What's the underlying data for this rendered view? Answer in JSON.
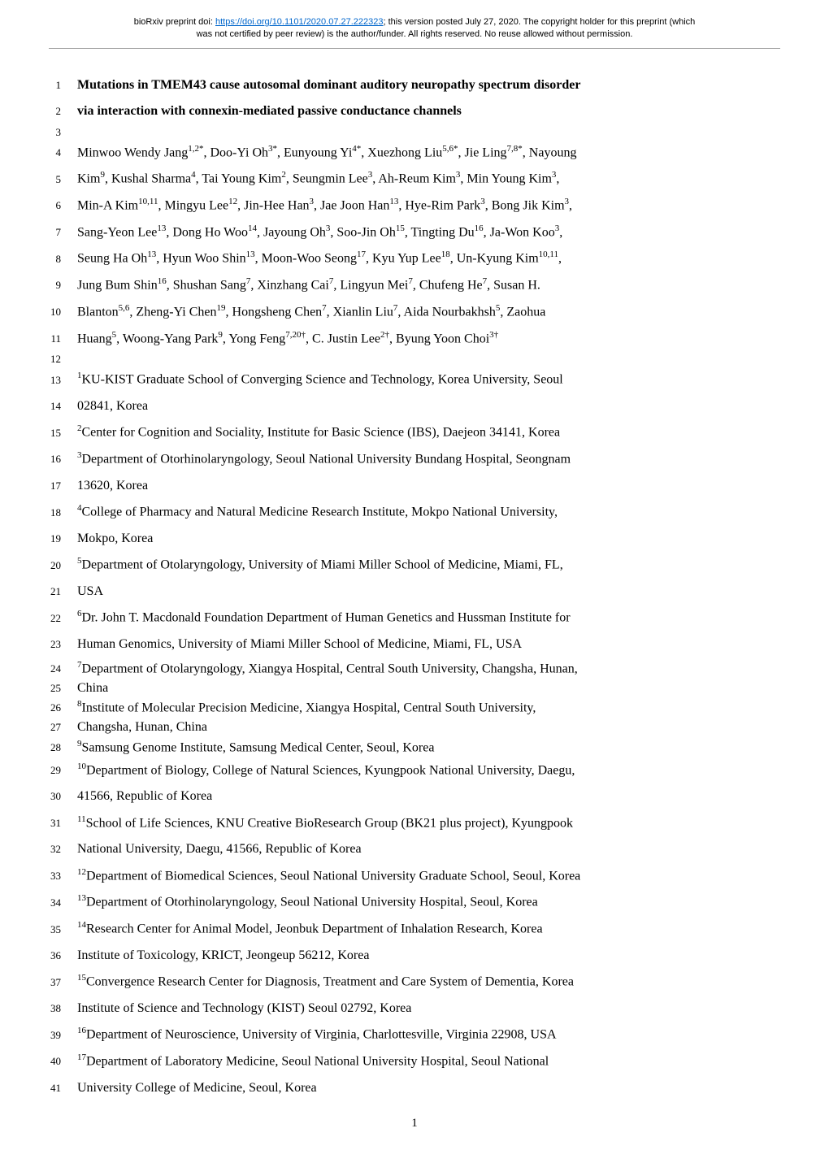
{
  "preprint": {
    "prefix": "bioRxiv preprint doi: ",
    "doi_url": "https://doi.org/10.1101/2020.07.27.222323",
    "suffix1": "; this version posted July 27, 2020. The copyright holder for this preprint (which",
    "suffix2": "was not certified by peer review) is the author/funder. All rights reserved. No reuse allowed without permission."
  },
  "lines": [
    {
      "num": "1",
      "type": "title",
      "html": "Mutations in TMEM43 cause autosomal dominant auditory neuropathy spectrum disorder"
    },
    {
      "num": "2",
      "type": "title",
      "html": "via interaction with connexin-mediated passive conductance channels"
    },
    {
      "num": "3",
      "type": "blank",
      "html": ""
    },
    {
      "num": "4",
      "type": "author",
      "html": "Minwoo Wendy Jang<sup>1,2*</sup>, Doo-Yi Oh<sup>3*</sup>, Eunyoung Yi<sup>4*</sup>, Xuezhong Liu<sup>5,6*</sup>, Jie Ling<sup>7,8*</sup>, Nayoung"
    },
    {
      "num": "5",
      "type": "author",
      "html": "Kim<sup>9</sup>, Kushal Sharma<sup>4</sup>, Tai Young Kim<sup>2</sup>, Seungmin Lee<sup>3</sup>, Ah-Reum Kim<sup>3</sup>, Min Young Kim<sup>3</sup>,"
    },
    {
      "num": "6",
      "type": "author",
      "html": "Min-A Kim<sup>10,11</sup>, Mingyu Lee<sup>12</sup>, Jin-Hee Han<sup>3</sup>, Jae Joon Han<sup>13</sup>, Hye-Rim Park<sup>3</sup>, Bong Jik Kim<sup>3</sup>,"
    },
    {
      "num": "7",
      "type": "author",
      "html": "Sang-Yeon Lee<sup>13</sup>, Dong Ho Woo<sup>14</sup>, Jayoung Oh<sup>3</sup>, Soo-Jin Oh<sup>15</sup>, Tingting Du<sup>16</sup>, Ja-Won Koo<sup>3</sup>,"
    },
    {
      "num": "8",
      "type": "author",
      "html": "Seung Ha Oh<sup>13</sup>, Hyun Woo Shin<sup>13</sup>, Moon-Woo Seong<sup>17</sup>, Kyu Yup Lee<sup>18</sup>, Un-Kyung Kim<sup>10,11</sup>,"
    },
    {
      "num": "9",
      "type": "author",
      "html": "Jung Bum Shin<sup>16</sup>, Shushan Sang<sup>7</sup>, Xinzhang Cai<sup>7</sup>, Lingyun Mei<sup>7</sup>, Chufeng He<sup>7</sup>, Susan H."
    },
    {
      "num": "10",
      "type": "author",
      "html": "Blanton<sup>5,6</sup>, Zheng-Yi Chen<sup>19</sup>, Hongsheng Chen<sup>7</sup>, Xianlin Liu<sup>7</sup>, Aida Nourbakhsh<sup>5</sup>, Zaohua"
    },
    {
      "num": "11",
      "type": "author",
      "html": "Huang<sup>5</sup>, Woong-Yang Park<sup>9</sup>, Yong Feng<sup>7,20†</sup>, C. Justin Lee<sup>2†</sup>, Byung Yoon Choi<sup>3†</sup>"
    },
    {
      "num": "12",
      "type": "blank",
      "html": ""
    },
    {
      "num": "13",
      "type": "affil",
      "html": "<sup>1</sup>KU-KIST Graduate School of Converging Science and Technology, Korea University, Seoul"
    },
    {
      "num": "14",
      "type": "affil",
      "html": "02841, Korea"
    },
    {
      "num": "15",
      "type": "affil",
      "html": "<sup>2</sup>Center for Cognition and Sociality, Institute for Basic Science (IBS), Daejeon 34141, Korea"
    },
    {
      "num": "16",
      "type": "affil",
      "html": "<sup>3</sup>Department of Otorhinolaryngology, Seoul National University Bundang Hospital, Seongnam"
    },
    {
      "num": "17",
      "type": "affil",
      "html": "13620, Korea"
    },
    {
      "num": "18",
      "type": "affil",
      "html": "<sup>4</sup>College of Pharmacy and Natural Medicine Research Institute, Mokpo National University,"
    },
    {
      "num": "19",
      "type": "affil",
      "html": "Mokpo, Korea"
    },
    {
      "num": "20",
      "type": "affil",
      "html": "<sup>5</sup>Department of Otolaryngology, University of Miami Miller School of Medicine, Miami, FL,"
    },
    {
      "num": "21",
      "type": "affil",
      "html": "USA"
    },
    {
      "num": "22",
      "type": "affil",
      "html": "<sup>6</sup>Dr. John T. Macdonald Foundation Department of Human Genetics and Hussman Institute for"
    },
    {
      "num": "23",
      "type": "affil",
      "html": "Human Genomics, University of Miami Miller School of Medicine, Miami, FL, USA"
    },
    {
      "num": "24",
      "type": "small",
      "html": "<sup>7</sup>Department of Otolaryngology, Xiangya Hospital, Central South University, Changsha, Hunan,"
    },
    {
      "num": "25",
      "type": "small",
      "html": "China"
    },
    {
      "num": "26",
      "type": "small",
      "html": "<sup>8</sup>Institute of Molecular Precision Medicine, Xiangya Hospital, Central South University,"
    },
    {
      "num": "27",
      "type": "small",
      "html": "Changsha, Hunan, China"
    },
    {
      "num": "28",
      "type": "small",
      "html": "<sup>9</sup>Samsung Genome Institute, Samsung Medical Center, Seoul, Korea"
    },
    {
      "num": "29",
      "type": "affil",
      "html": "<sup>10</sup>Department of Biology, College of Natural Sciences, Kyungpook National University, Daegu,"
    },
    {
      "num": "30",
      "type": "affil",
      "html": "41566, Republic of Korea"
    },
    {
      "num": "31",
      "type": "affil",
      "html": "<sup>11</sup>School of Life Sciences, KNU Creative BioResearch Group (BK21 plus project), Kyungpook"
    },
    {
      "num": "32",
      "type": "affil",
      "html": "National University, Daegu, 41566, Republic of Korea"
    },
    {
      "num": "33",
      "type": "affil",
      "html": "<sup>12</sup>Department of Biomedical Sciences, Seoul National University Graduate School, Seoul, Korea"
    },
    {
      "num": "34",
      "type": "affil",
      "html": "<sup>13</sup>Department of Otorhinolaryngology, Seoul National University Hospital, Seoul, Korea"
    },
    {
      "num": "35",
      "type": "affil",
      "html": "<sup>14</sup>Research Center for Animal Model, Jeonbuk Department of Inhalation Research, Korea"
    },
    {
      "num": "36",
      "type": "affil",
      "html": "Institute of Toxicology, KRICT, Jeongeup 56212, Korea"
    },
    {
      "num": "37",
      "type": "affil",
      "html": "<sup>15</sup>Convergence Research Center for Diagnosis, Treatment and Care System of Dementia, Korea"
    },
    {
      "num": "38",
      "type": "affil",
      "html": "Institute of Science and Technology (KIST) Seoul 02792, Korea"
    },
    {
      "num": "39",
      "type": "affil",
      "html": "<sup>16</sup>Department of Neuroscience, University of Virginia, Charlottesville, Virginia 22908, USA"
    },
    {
      "num": "40",
      "type": "affil",
      "html": "<sup>17</sup>Department of Laboratory Medicine, Seoul National University Hospital, Seoul National"
    },
    {
      "num": "41",
      "type": "affil",
      "html": "University College of Medicine, Seoul, Korea"
    }
  ],
  "page_number": "1"
}
